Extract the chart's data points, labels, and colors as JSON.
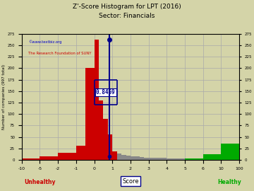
{
  "title": "Z'-Score Histogram for LPT (2016)",
  "subtitle": "Sector: Financials",
  "xlabel_bottom": "Score",
  "xlabel_unhealthy": "Unhealthy",
  "xlabel_healthy": "Healthy",
  "ylabel": "Number of companies (997 total)",
  "annotation": "0.8469",
  "annotation_value": 0.8469,
  "watermark1": "©www.textbiz.org",
  "watermark2": "The Research Foundation of SUNY",
  "ylim": [
    0,
    275
  ],
  "yticks": [
    0,
    25,
    50,
    75,
    100,
    125,
    150,
    175,
    200,
    225,
    250,
    275
  ],
  "xtick_labels": [
    "-10",
    "-5",
    "-2",
    "-1",
    "0",
    "1",
    "2",
    "3",
    "4",
    "5",
    "6",
    "10",
    "100"
  ],
  "xtick_values": [
    -10,
    -5,
    -2,
    -1,
    0,
    1,
    2,
    3,
    4,
    5,
    6,
    10,
    100
  ],
  "n_xticks": 13,
  "threshold_unhealthy": 1.23,
  "threshold_healthy": 2.9,
  "color_unhealthy": "#cc0000",
  "color_healthy": "#00aa00",
  "color_neutral": "#888888",
  "color_line": "#00008b",
  "color_box": "#00008b",
  "background_color": "#d4d4a8",
  "grid_color": "#aaaaaa",
  "title_color": "#000000"
}
